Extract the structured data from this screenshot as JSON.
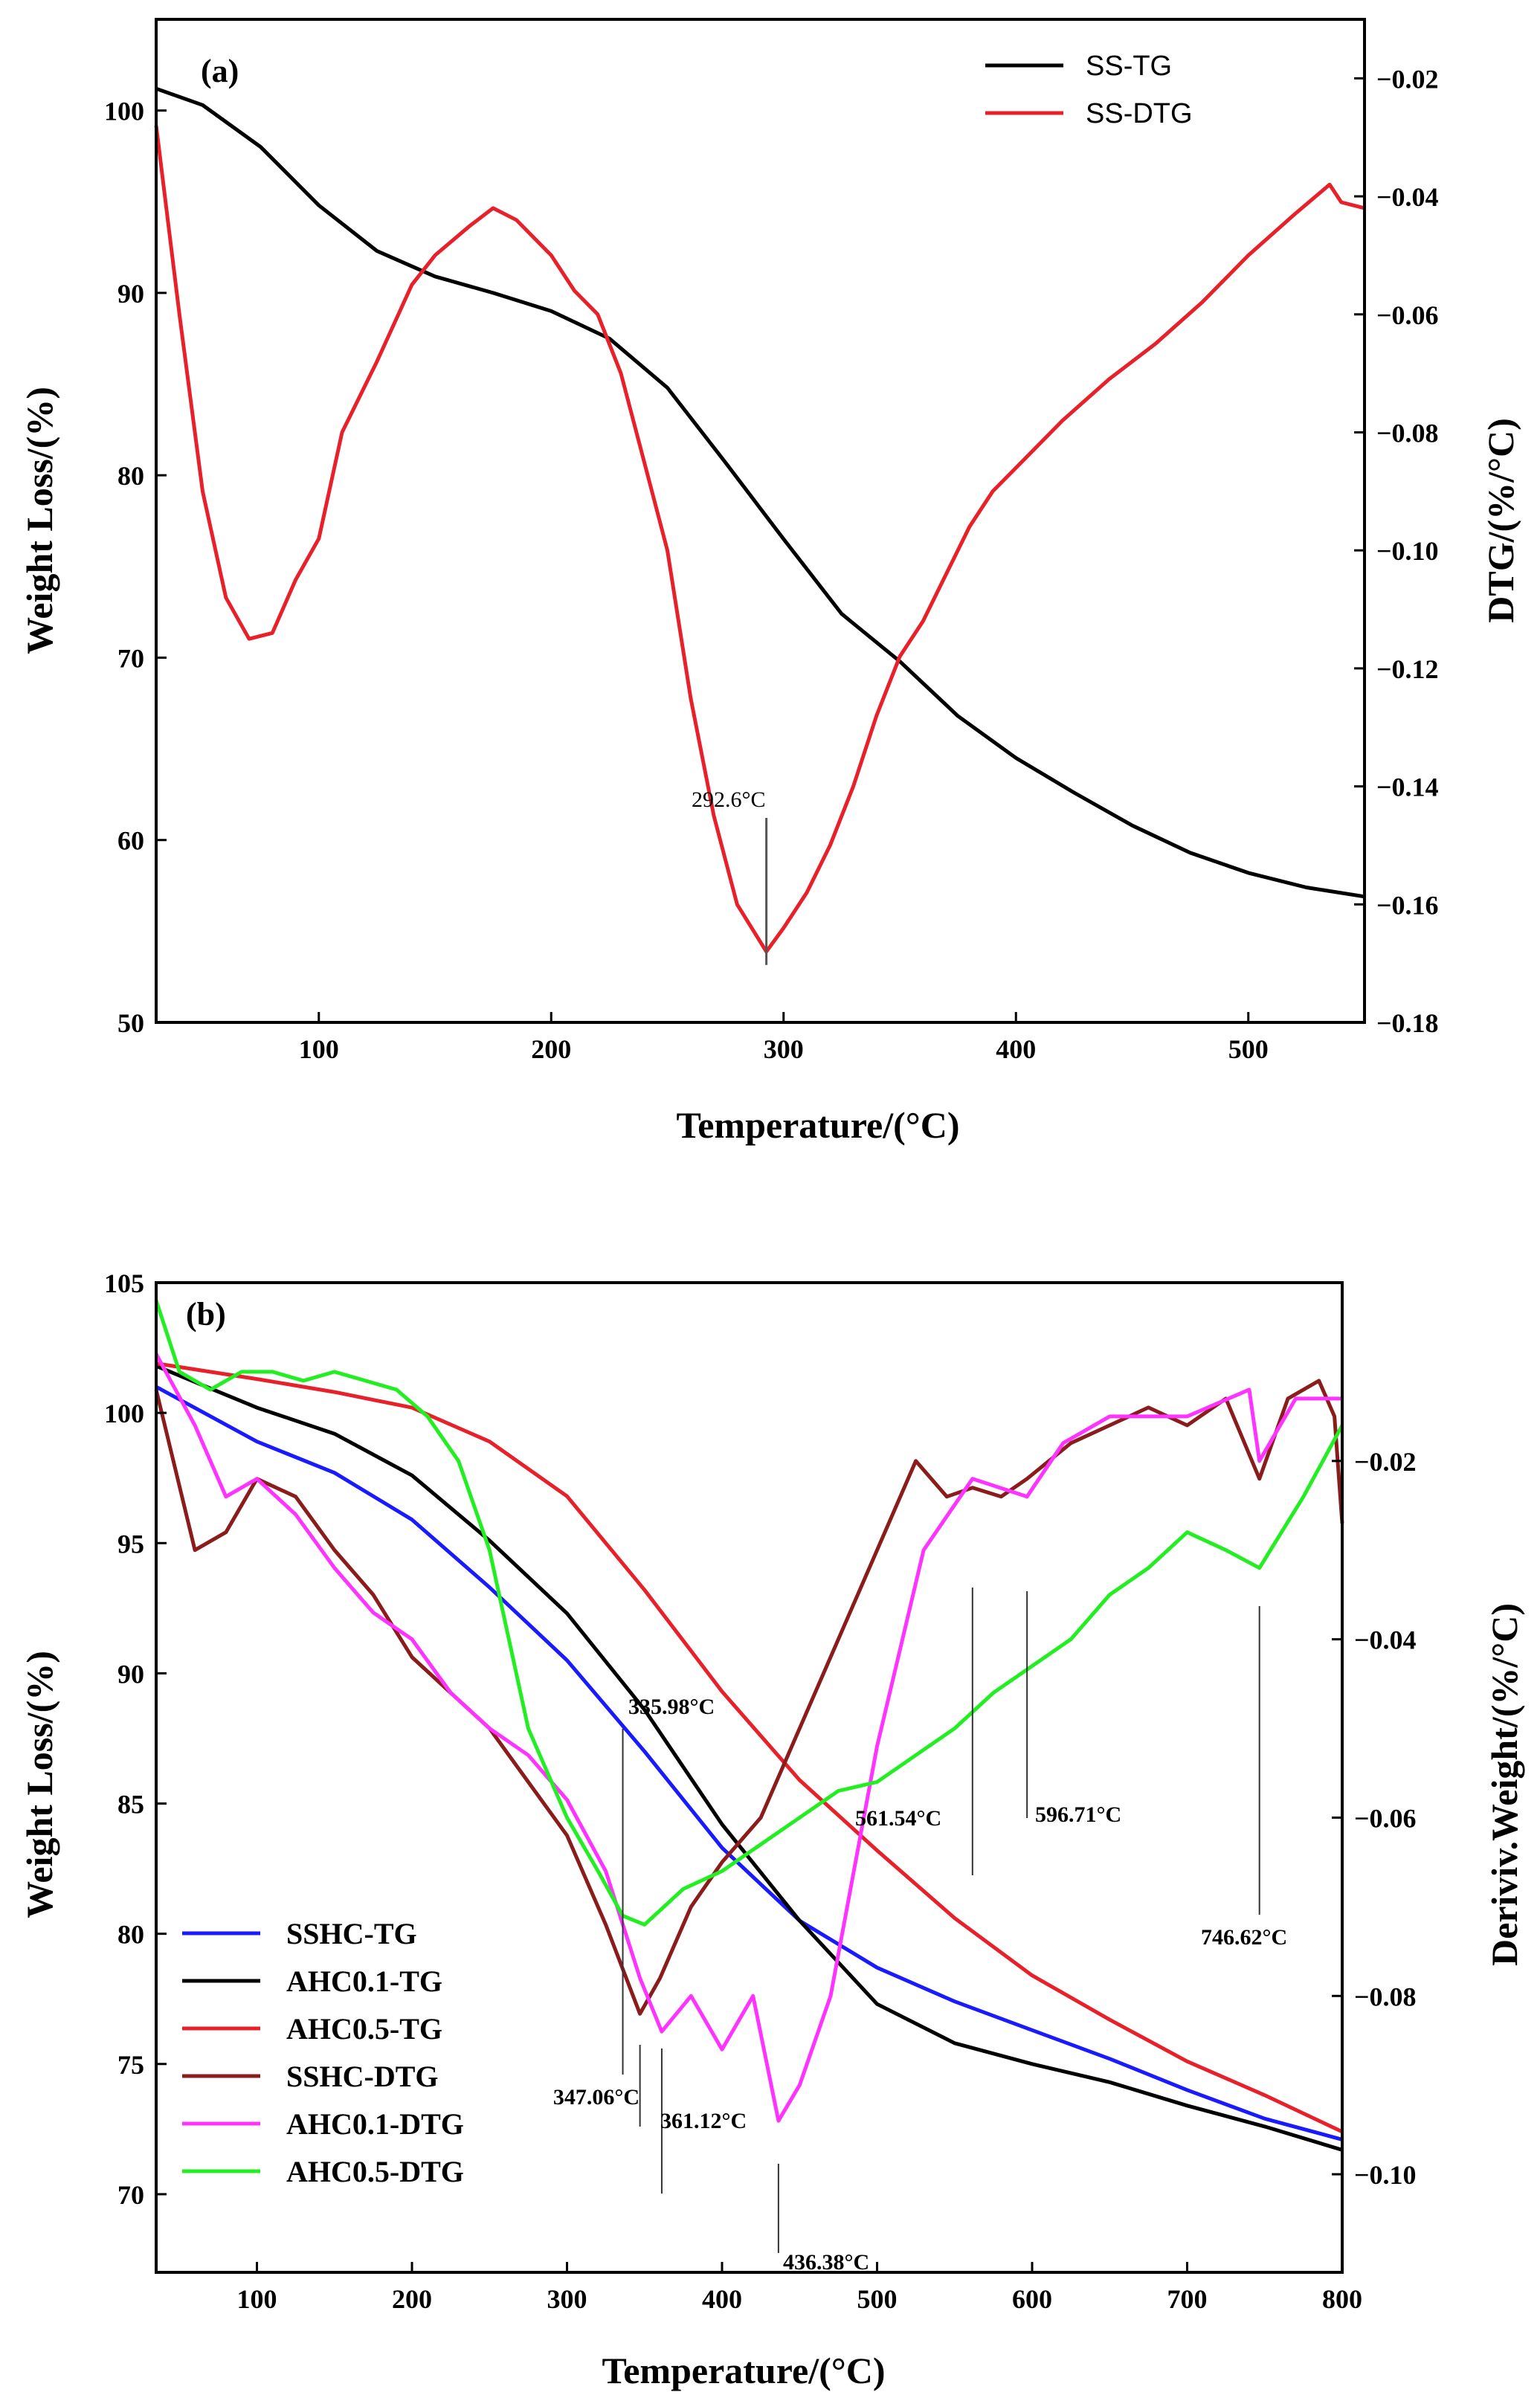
{
  "chart_data": [
    {
      "panel": "(a)",
      "type": "line",
      "xlabel": "Temperature/(°C)",
      "ylabel": "Weight Loss/(%)",
      "y2label": "DTG/(%/°C)",
      "xlim": [
        30,
        550
      ],
      "ylim": [
        50,
        105
      ],
      "y2lim": [
        -0.18,
        -0.01
      ],
      "xticks": [
        100,
        200,
        300,
        400,
        500
      ],
      "yticks": [
        50,
        60,
        70,
        80,
        90,
        100
      ],
      "y2ticks": [
        -0.18,
        -0.16,
        -0.14,
        -0.12,
        -0.1,
        -0.08,
        -0.06,
        -0.04,
        -0.02
      ],
      "y2tick_labels": [
        "−0.18",
        "−0.16",
        "−0.14",
        "−0.12",
        "−0.10",
        "−0.08",
        "−0.06",
        "−0.04",
        "−0.02"
      ],
      "legend_position": "top-right",
      "series": [
        {
          "name": "SS-TG",
          "axis": "left",
          "color": "#000000",
          "x": [
            30,
            50,
            75,
            100,
            125,
            150,
            175,
            200,
            225,
            250,
            275,
            300,
            325,
            350,
            375,
            400,
            425,
            450,
            475,
            500,
            525,
            550
          ],
          "y": [
            101.2,
            100.3,
            98.0,
            94.8,
            92.3,
            90.9,
            90.0,
            89.0,
            87.5,
            84.8,
            80.7,
            76.5,
            72.4,
            69.8,
            66.8,
            64.5,
            62.6,
            60.8,
            59.3,
            58.2,
            57.4,
            56.9
          ]
        },
        {
          "name": "SS-DTG",
          "axis": "right",
          "color": "#e8202a",
          "x": [
            30,
            40,
            50,
            60,
            70,
            80,
            90,
            100,
            110,
            125,
            140,
            150,
            165,
            175,
            185,
            200,
            210,
            220,
            230,
            240,
            250,
            260,
            270,
            280,
            292.6,
            300,
            310,
            320,
            330,
            340,
            350,
            360,
            370,
            380,
            390,
            400,
            420,
            440,
            460,
            480,
            500,
            520,
            535,
            540,
            550
          ],
          "y": [
            -0.028,
            -0.06,
            -0.09,
            -0.108,
            -0.115,
            -0.114,
            -0.105,
            -0.098,
            -0.08,
            -0.068,
            -0.055,
            -0.05,
            -0.045,
            -0.042,
            -0.044,
            -0.05,
            -0.056,
            -0.06,
            -0.07,
            -0.085,
            -0.1,
            -0.125,
            -0.145,
            -0.16,
            -0.168,
            -0.164,
            -0.158,
            -0.15,
            -0.14,
            -0.128,
            -0.118,
            -0.112,
            -0.104,
            -0.096,
            -0.09,
            -0.086,
            -0.078,
            -0.071,
            -0.065,
            -0.058,
            -0.05,
            -0.043,
            -0.038,
            -0.041,
            -0.042
          ]
        }
      ],
      "annotations": [
        {
          "text": "292.6°C",
          "x": 292.6,
          "y2": -0.168
        }
      ]
    },
    {
      "panel": "(b)",
      "type": "line",
      "xlabel": "Temperature/(°C)",
      "ylabel": "Weight Loss/(%)",
      "y2label": "Deriviv.Weight/(%/°C)",
      "xlim": [
        35,
        800
      ],
      "ylim": [
        67,
        105
      ],
      "y2lim": [
        -0.111,
        -0.0
      ],
      "xticks": [
        100,
        200,
        300,
        400,
        500,
        600,
        700,
        800
      ],
      "yticks": [
        70,
        75,
        80,
        85,
        90,
        95,
        100,
        105
      ],
      "y2ticks": [
        -0.1,
        -0.08,
        -0.06,
        -0.04,
        -0.02
      ],
      "y2tick_labels": [
        "−0.10",
        "−0.08",
        "−0.06",
        "−0.04",
        "−0.02"
      ],
      "legend_position": "bottom-left",
      "series": [
        {
          "name": "SSHC-TG",
          "axis": "left",
          "color": "#1a1aff",
          "x": [
            35,
            100,
            150,
            200,
            250,
            300,
            350,
            400,
            450,
            500,
            550,
            600,
            650,
            700,
            750,
            800
          ],
          "y": [
            101.0,
            98.9,
            97.7,
            95.9,
            93.3,
            90.5,
            87.0,
            83.3,
            80.5,
            78.7,
            77.4,
            76.3,
            75.2,
            74.0,
            72.9,
            72.1
          ]
        },
        {
          "name": "AHC0.1-TG",
          "axis": "left",
          "color": "#000000",
          "x": [
            35,
            100,
            150,
            200,
            250,
            300,
            350,
            400,
            450,
            500,
            550,
            600,
            650,
            700,
            750,
            800
          ],
          "y": [
            101.8,
            100.2,
            99.2,
            97.6,
            95.1,
            92.3,
            88.6,
            84.2,
            80.5,
            77.3,
            75.8,
            75.0,
            74.3,
            73.4,
            72.6,
            71.7
          ]
        },
        {
          "name": "AHC0.5-TG",
          "axis": "left",
          "color": "#e8202a",
          "x": [
            35,
            100,
            150,
            200,
            250,
            300,
            350,
            400,
            450,
            500,
            550,
            600,
            650,
            700,
            750,
            800
          ],
          "y": [
            101.9,
            101.3,
            100.8,
            100.2,
            98.9,
            96.8,
            93.2,
            89.3,
            85.9,
            83.2,
            80.6,
            78.4,
            76.7,
            75.1,
            73.8,
            72.4
          ]
        },
        {
          "name": "SSHC-DTG",
          "axis": "right",
          "color": "#8b1c1c",
          "x": [
            35,
            60,
            80,
            100,
            125,
            150,
            175,
            200,
            225,
            250,
            275,
            300,
            325,
            347.06,
            360,
            380,
            400,
            425,
            450,
            475,
            500,
            525,
            545,
            561.54,
            580,
            596.71,
            625,
            650,
            675,
            700,
            725,
            746.62,
            765,
            785,
            795,
            800
          ],
          "y": [
            -0.012,
            -0.03,
            -0.028,
            -0.022,
            -0.024,
            -0.03,
            -0.035,
            -0.042,
            -0.046,
            -0.05,
            -0.056,
            -0.062,
            -0.072,
            -0.082,
            -0.078,
            -0.07,
            -0.065,
            -0.06,
            -0.05,
            -0.04,
            -0.03,
            -0.02,
            -0.024,
            -0.023,
            -0.024,
            -0.022,
            -0.018,
            -0.016,
            -0.014,
            -0.016,
            -0.013,
            -0.022,
            -0.013,
            -0.011,
            -0.015,
            -0.027
          ]
        },
        {
          "name": "AHC0.1-DTG",
          "axis": "right",
          "color": "#ff33ff",
          "x": [
            35,
            60,
            80,
            100,
            125,
            150,
            175,
            200,
            225,
            250,
            275,
            300,
            325,
            347.06,
            361.12,
            380,
            400,
            420,
            436.38,
            450,
            470,
            500,
            530,
            561.54,
            596.71,
            620,
            650,
            700,
            740,
            746.62,
            770,
            800
          ],
          "y": [
            -0.008,
            -0.016,
            -0.024,
            -0.022,
            -0.026,
            -0.032,
            -0.037,
            -0.04,
            -0.046,
            -0.05,
            -0.053,
            -0.058,
            -0.066,
            -0.078,
            -0.084,
            -0.08,
            -0.086,
            -0.08,
            -0.094,
            -0.09,
            -0.08,
            -0.052,
            -0.03,
            -0.022,
            -0.024,
            -0.018,
            -0.015,
            -0.015,
            -0.012,
            -0.02,
            -0.013,
            -0.013
          ]
        },
        {
          "name": "AHC0.5-DTG",
          "axis": "right",
          "color": "#22ee22",
          "x": [
            35,
            50,
            70,
            90,
            110,
            130,
            150,
            170,
            190,
            210,
            230,
            250,
            275,
            300,
            320,
            335.98,
            350,
            375,
            400,
            425,
            450,
            475,
            500,
            525,
            550,
            575,
            600,
            625,
            650,
            675,
            700,
            725,
            746.62,
            775,
            800
          ],
          "y": [
            -0.002,
            -0.01,
            -0.012,
            -0.01,
            -0.01,
            -0.011,
            -0.01,
            -0.011,
            -0.012,
            -0.015,
            -0.02,
            -0.03,
            -0.05,
            -0.06,
            -0.066,
            -0.071,
            -0.072,
            -0.068,
            -0.066,
            -0.063,
            -0.06,
            -0.057,
            -0.056,
            -0.053,
            -0.05,
            -0.046,
            -0.043,
            -0.04,
            -0.035,
            -0.032,
            -0.028,
            -0.03,
            -0.032,
            -0.024,
            -0.016
          ]
        }
      ],
      "annotations": [
        {
          "text": "335.98°C",
          "x": 335.98
        },
        {
          "text": "347.06°C",
          "x": 347.06
        },
        {
          "text": "361.12°C",
          "x": 361.12
        },
        {
          "text": "436.38°C",
          "x": 436.38
        },
        {
          "text": "561.54°C",
          "x": 561.54
        },
        {
          "text": "596.71°C",
          "x": 596.71
        },
        {
          "text": "746.62°C",
          "x": 746.62
        }
      ]
    }
  ]
}
